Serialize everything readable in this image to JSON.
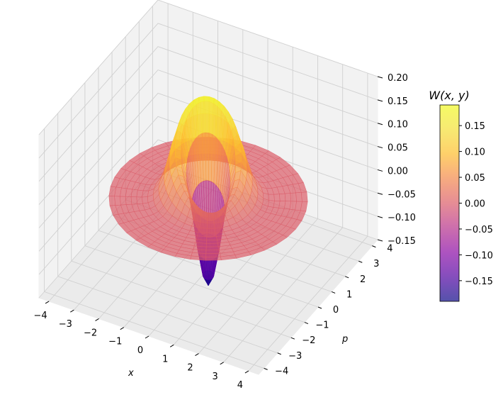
{
  "chart_data": {
    "type": "surface3d",
    "colormap": "plasma",
    "z_label": "W(x, y)",
    "xlabel": "x",
    "ylabel": "p",
    "x_ticks": [
      "−4",
      "−3",
      "−2",
      "−1",
      "0",
      "1",
      "2",
      "3",
      "4"
    ],
    "y_ticks": [
      "−4",
      "−3",
      "−2",
      "−1",
      "0",
      "1",
      "2",
      "3",
      "4"
    ],
    "z_ticks": [
      "−0.15",
      "−0.10",
      "−0.05",
      "0.00",
      "0.05",
      "0.10",
      "0.15",
      "0.20"
    ],
    "colorbar_ticks": [
      "−0.15",
      "−0.10",
      "−0.05",
      "0.00",
      "0.05",
      "0.10",
      "0.15"
    ],
    "xlim": [
      -4.4,
      4.4
    ],
    "ylim": [
      -4.4,
      4.4
    ],
    "zlim": [
      -0.15,
      0.2
    ],
    "colorbar_range": [
      -0.19,
      0.19
    ],
    "surface": {
      "domain": "disk",
      "radius_max": 3.5,
      "peak_value": 0.19,
      "trough_value": -0.19,
      "surface_alpha": 0.7
    },
    "grid": true
  }
}
